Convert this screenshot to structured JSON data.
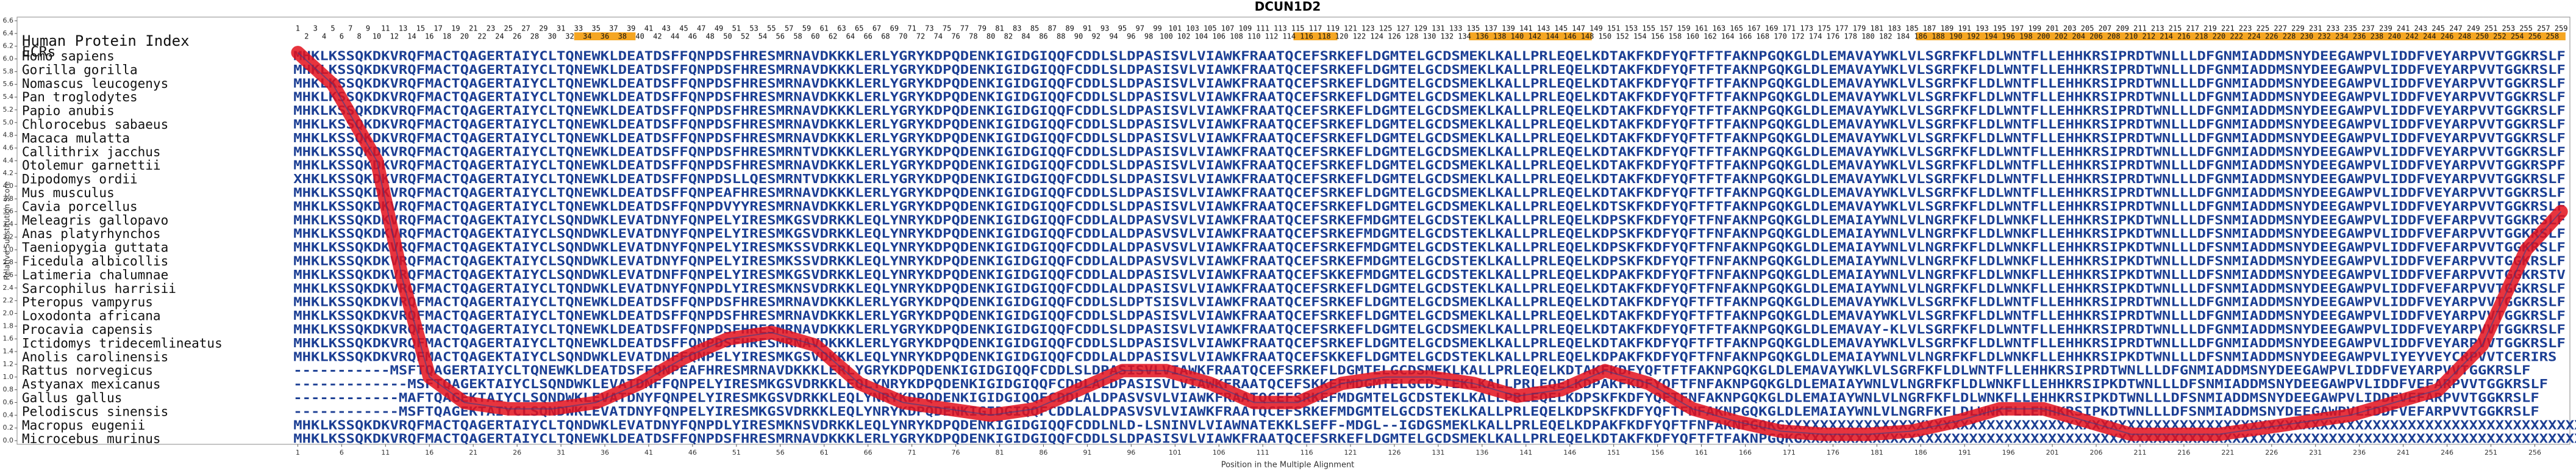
{
  "chart_data": {
    "type": "line",
    "title": "DCUN1D2",
    "xlabel": "Position in the Multiple Alignment",
    "ylabel": "Relative Substitution Score",
    "row_header": "Human Protein Index",
    "ecr_label": "ECRs",
    "xlim": [
      -31,
      260
    ],
    "ylim": [
      0,
      6.6
    ],
    "xticks": [
      1,
      6,
      11,
      16,
      21,
      26,
      31,
      36,
      41,
      46,
      51,
      56,
      61,
      66,
      71,
      76,
      81,
      86,
      91,
      96,
      101,
      106,
      111,
      116,
      121,
      126,
      131,
      136,
      141,
      146,
      151,
      156,
      161,
      166,
      171,
      176,
      181,
      186,
      191,
      196,
      201,
      206,
      211,
      216,
      221,
      226,
      231,
      236,
      241,
      246,
      251,
      256
    ],
    "yticks": [
      {
        "value": 0,
        "label": "0.0"
      },
      0.2,
      0.4,
      0.6,
      0.8,
      {
        "value": 1,
        "label": "1.0"
      },
      1.2,
      1.4,
      1.6,
      1.8,
      {
        "value": 2,
        "label": "2.0"
      },
      2.2,
      2.4,
      2.6,
      2.8,
      {
        "value": 3,
        "label": "3.0"
      },
      3.2,
      3.4,
      3.6,
      3.8,
      {
        "value": 4,
        "label": "4.0"
      },
      4.2,
      4.4,
      4.6,
      4.8,
      {
        "value": 5,
        "label": "5.0"
      },
      5.2,
      5.4,
      5.6,
      5.8,
      {
        "value": 6,
        "label": "6.0"
      },
      6.2,
      6.4,
      6.6
    ],
    "color": "#e3101c",
    "x": [
      1,
      5,
      10,
      13,
      16,
      20,
      25,
      30,
      35,
      40,
      45,
      50,
      55,
      60,
      65,
      70,
      75,
      80,
      85,
      90,
      95,
      100,
      105,
      110,
      115,
      120,
      125,
      130,
      135,
      140,
      145,
      150,
      155,
      160,
      165,
      170,
      175,
      180,
      185,
      190,
      195,
      200,
      205,
      210,
      215,
      220,
      225,
      230,
      235,
      240,
      245,
      250,
      255,
      259
    ],
    "values": [
      6.1,
      5.6,
      4.4,
      2.5,
      1.0,
      0.6,
      0.5,
      0.5,
      0.6,
      0.9,
      1.3,
      1.6,
      1.7,
      1.5,
      0.9,
      0.6,
      0.5,
      0.4,
      0.5,
      0.8,
      1.1,
      1.1,
      0.9,
      0.6,
      0.6,
      0.9,
      1.0,
      1.0,
      0.9,
      0.7,
      0.8,
      1.1,
      0.9,
      0.5,
      0.3,
      0.15,
      0.1,
      0.1,
      0.15,
      0.3,
      0.5,
      0.5,
      0.3,
      0.1,
      0.1,
      0.1,
      0.2,
      0.3,
      0.4,
      0.6,
      0.8,
      1.5,
      3.0,
      3.6
    ],
    "ecr_color": "#f5a623",
    "ecrs": [
      [
        33,
        39
      ],
      [
        115,
        119
      ],
      [
        135,
        148
      ],
      [
        186,
        259
      ]
    ],
    "human_index": [
      1,
      2,
      3,
      4,
      5,
      6,
      7,
      8,
      9,
      10,
      11,
      12,
      13,
      14,
      15,
      16,
      17,
      18,
      19,
      20,
      21,
      22,
      23,
      24,
      25,
      26,
      27,
      28,
      29,
      30,
      31,
      32,
      33,
      34,
      35,
      36,
      37,
      38,
      39,
      40,
      41,
      42,
      43,
      44,
      45,
      46,
      47,
      48,
      49,
      50,
      51,
      52,
      53,
      54,
      55,
      56,
      57,
      58,
      59,
      60,
      61,
      62,
      63,
      64,
      65,
      66,
      67,
      68,
      69,
      70,
      71,
      72,
      73,
      74,
      75,
      76,
      77,
      78,
      79,
      80,
      81,
      82,
      83,
      84,
      85,
      86,
      87,
      88,
      89,
      90,
      91,
      92,
      93,
      94,
      95,
      96,
      97,
      98,
      99,
      100,
      101,
      102,
      103,
      104,
      105,
      106,
      107,
      108,
      109,
      110,
      111,
      112,
      113,
      114,
      115,
      116,
      117,
      118,
      119,
      120,
      121,
      122,
      123,
      124,
      125,
      126,
      127,
      128,
      129,
      130,
      131,
      132,
      133,
      134,
      135,
      136,
      137,
      138,
      139,
      140,
      141,
      142,
      143,
      144,
      145,
      146,
      147,
      148,
      149,
      150,
      151,
      152,
      153,
      154,
      155,
      156,
      157,
      158,
      159,
      160,
      161,
      162,
      163,
      164,
      165,
      166,
      167,
      168,
      169,
      170,
      171,
      172,
      173,
      174,
      175,
      176,
      177,
      178,
      179,
      180,
      181,
      182,
      183,
      184,
      185,
      186,
      187,
      188,
      189,
      190,
      191,
      192,
      193,
      194,
      195,
      196,
      197,
      198,
      199,
      200,
      201,
      202,
      203,
      204,
      205,
      206,
      207,
      208,
      209,
      210,
      211,
      212,
      213,
      214,
      215,
      216,
      217,
      218,
      219,
      220,
      221,
      222,
      223,
      224,
      225,
      226,
      227,
      228,
      229,
      230,
      231,
      232,
      233,
      234,
      235,
      236,
      237,
      238,
      239,
      240,
      241,
      242,
      243,
      244,
      245,
      246,
      247,
      248,
      249,
      250,
      251,
      252,
      253,
      254,
      255,
      256,
      257,
      258,
      259
    ],
    "alignment": [
      {
        "species": "Homo sapiens",
        "sequence": "MHKLKSSQKDKVRQFMACTQAGERTAIYCLTQNEWKLDEATDSFFQNPDSFHRESMRNAVDKKKLERLYGRYKDPQDENKIGIDGIQQFCDDLSLDPASISVLVIAWKFRAATQCEFSRKEFLDGMTELGCDSMEKLKALLPRLEQELKDTAKFKDFYQFTFTFAKNPGQKGLDLEMAVAYWKLVLSGRFKFLDLWNTFLLEHHKRSIPRDTWNLLLDFGNMIADDMSNYDEEGAWPVLIDDFVEYARPVVTGGKRSLF"
      },
      {
        "species": "Gorilla gorilla",
        "sequence": "MHKLKSSQKDKVRQFMACTQAGERTAIYCLTQNEWKLDEATDSFFQNPDSFHRESMRNAVDKKKLERLYGRYKDPQDENKIGIDGIQQFCDDLSLDPASISVLVIAWKFRAATQCEFSRKEFLDGMTELGCDSMEKLKALLPRLEQELKDTAKFKDFYQFTFTFAKNPGQKGLDLEMAVAYWKLVLSGRFKFLDLWNTFLLEHHKRSIPRDTWNLLLDFGNMIADDMSNYDEEGAWPVLIDDFVEYARPVVTGGKRSLF"
      },
      {
        "species": "Nomascus leucogenys",
        "sequence": "MHKLKSSQKDKVRQFMACTQAGERTAIYCLTQNEWKLDEATDSFFQNPDSFHRESMRNAVDKKKLERLYGRYKDPQDENKIGIDGIQQFCDDLSLDPASISVLVIAWKFRAATQCEFSRKEFLDGMTELGCDSMEKLKALLPRLEQELKDTAKFKDFYQFTFTFAKNPGQKGLDLEMAVAYWKLVLSGRFKFLDLWNTFLLEHHKRSIPRDTWNLLLDFGNMIADDMSNYDEEGAWPVLIDDFVEYARPVVTGGKRSLF"
      },
      {
        "species": "Pan troglodytes",
        "sequence": "MHKLKSSQKDKVRQFMACTQAGERTAIYCLTQNEWKLDEATDSFFQNPDSFHRESMRNAVDKKKLERLYGRYKDPQDENKIGIDGIQQFCDDLSLDPASISVLVIAWKFRAATQCEFSRKEFLDGMTELGCDSMEKLKALLPRLEQELKDTAKFKDFYQFTFTFAKNPGQKGLDLEMAVAYWKLVLSGRFKFLDLWNTFLLEHHKRSIPRDTWNLLLDFGNMIADDMSNYDEEGAWPVLIDDFVEYARPVVTGGKRSLF"
      },
      {
        "species": "Papio anubis",
        "sequence": "MHKLKSSQKDKVRQFMACTQAGERTAIYCLTQNEWKLDEATDSFFQNPDSFHRESMRNAVDKKKLERLYGRYKDPQDENKIGIDGIQQFCDDLSLDPASISVLVIAWKFRAATQCEFSRKEFLDGMTELGCDSMEKLKALLPRLEQELKDTAKFKDFYQFTFTFAKNPGQKGLDLEMAVAYWKLVLSGRFKFLDLWNTFLLEHHKRSIPRDTWNLLLDFGNMIADDMSNYDEEGAWPVLIDDFVEYARPVVTGGKRSLF"
      },
      {
        "species": "Chlorocebus sabaeus",
        "sequence": "MHKLKSSQKDKVRQFMACTQAGERTAIYCLTQNEWKLDEATDSFFQNPDSFHRESMRNAVDKKKLERLYGRYKDPQDENKIGIDGIQQFCDDLSLDPASISVLVIAWKFRAATQCEFSRKEFLDGMTELGCDSMEKLKALLPRLEQELKDTAKFKDFYQFTFTFAKNPGQKGLDLEMAVAYWKLVLSGRFKFLDLWNTFLLEHHKRSIPRDTWNLLLDFGNMIADDMSNYDEEGAWPVLIDDFVEYARPVVTGGKRSLF"
      },
      {
        "species": "Macaca mulatta",
        "sequence": "MHKLKSSQKDKVRQFMACTQAGERTAIYCLTQNEWKLDEATDSFFQNPDSFHRESMRNAVDKKKLERLYGRYKDPQDENKIGIDGIQQFCDDLSLDPASISVLVIAWKFRAATQCEFSRKEFLDGMTELGCDSMEKLKALLPRLEQELKDTAKFKDFYQFTFTFAKNPGQKGLDLEMAVAYWKLVLSGRFKFLDLWNTFLLEHHKRSIPRDTWNLLLDFGNMIADDMSNYDEEGAWPVLIDDFVEYARPVVTGGKRSLF"
      },
      {
        "species": "Callithrix jacchus",
        "sequence": "MHKLKSSQKDKVRQFMACTQAGERTAIYCLTQNEWKLDEATDSFFQNPDSFHRESMRNTVDKKKLERLYGRYKDPQDENKIGIDGIQQFCDDLSLDPASISVLVIAWKFRAATQCEFSRKEFLDGMTELGCDSMEKLKALLPRLEQELKDTAKFKDFYQFTFTFAKNPGQKGLDLEMAVAYWKLVLSGRFKFLDLWNTFLLEHHKRSIPRDTWNLLLDFGNMIADDMSNYDEEGAWPVLIDDFVEYARPVVTGGKRSLF"
      },
      {
        "species": "Otolemur garnettii",
        "sequence": "MHKLKSSQKDKVRQFMACTQAGERTAIYCLTQNEWKLDEATDSFFQNPDSFHRESMRNAVDKKKLERLYGRYKDPQDENKIGIDGIQQFCDDLSLDPASISVLVIAWKFRAATQCEFSRKEFLDGMTELGCDSMEKLKALLPRLEQELKDTAKFKDFYQFTFTFAKNPGQKGLDLEMAVAYWKLVLSGRFKFLDLWNTFLLEHHKRSIPRDTWNLLLDFGNMIADDMSNYDEEGAWPVLIDDFVEYARPVVTGGKRSPF"
      },
      {
        "species": "Dipodomys ordii",
        "sequence": "XHKLKSSQKDKVRQFMACTQAGERTAIYCLTQNEWKLDEATDSFFQNPDSLLQESMRNTVDKKKLERLYGRYKDPQDENKIGIDGIQQFCDDLSLDPASISVLVIAWKFRAATQCEFSRKEFLDGMTELGCDSMEKLKALLPRLEQELKDTAKFKDFYQFTFTFAKNPGQKGLDLEMAVAYWKLVLSGRFKFLDLWNTFLLEHHKRSIPRDTWNLLLDFGNMIADDMSNYDEEGAWPVLIDDFVEYARPVVTGGKRSLF"
      },
      {
        "species": "Mus musculus",
        "sequence": "MHKLKSSQKDKVRQFMACTQAGERTAIYCLTQNEWKLDEATDSFFQNPEAFHRESMRNAVDKKKLERLYGRYKDPQDENKIGIDGIQQFCDDLSLDPASISVLVIAWKFRAATQCEFSRKEFLDGMTELGCDSMEKLKALLPRLEQELKDTAKFKDFYQFTFTFAKNPGQKGLDLEMAVAYWKLVLSGRFKFLDLWNTFLLEHHKRSIPRDTWNLLLDFGNMIADDMSNYDEEGAWPVLIDDFVEYARPVVTGGKRSLF"
      },
      {
        "species": "Cavia porcellus",
        "sequence": "MHKLKSSQKDKVRQFMACTQAGERTAIYCLTQNEWKLDEATDSFFQNPDVYYRESMRNAVDKKKLERLYGRYKDPQDENKIGIDGIQQFCDDLSLDPASISVLVIAWKFRAATQCEFSRKEFLDGMTELGCDSMEKLKALLPRLEQELKDTSKFKDFYQFTFTFAKNPGQKGLDLEMAVAYWKLVLSGRFKFLDLWNTFLLEHHKRSIPRDTWNLLLDFGNMIADDMSNYDEEGAWPVLIDDFVEYARPVVTGGKRSLF"
      },
      {
        "species": "Meleagris gallopavo",
        "sequence": "MHKLKSSQKDKVRQFMACTQAGEKTAIYCLSQNDWKLEVATDNYFQNPELYIRESMKGSVDRKKLEQLYNRYKDPQDENKIGIDGIQQFCDDLALDPASVSVLVIAWKFRAATQCEFSRKEFMDGMTELGCDSTEKLKALLPRLEQELKDPSKFKDFYQFTFNFAKNPGQKGLDLEMAIAYWNLVLNGRFKFLDLWNKFLLEHHKRSIPKDTWNLLLDFSNMIADDMSNYDEEGAWPVLIDDFVEFARPVVTGGKRSLF"
      },
      {
        "species": "Anas platyrhynchos",
        "sequence": "MHKLKSSQKDKVRQFMACTQAGEKTAIYCLSQNDWKLEVATDNYFQNPELYIRESMKGSVDRKKLEQLYNRYKDPQDENKIGIDGIQQFCDDLALDPASVSVLVIAWKFRAATQCEFSRKEFMDGMTELGCDSTEKLKALLPRLEQELKDPSKFKDFYQFTFNFAKNPGQKGLDLEMAIAYWNLVLNGRFKFLDLWNKFLLEHHKRSIPKDTWNLLLDFSNMIADDMSNYDEEGAWPVLIDDFVEFARPVVTGGKRSLF"
      },
      {
        "species": "Taeniopygia guttata",
        "sequence": "MHKLKSSQKDKVRQFMACTQAGEKTAIYCLSQNDWKLEVATDNYFQNPELYIRESMKSSVDRKKLEQLYNRYKDPQDENKIGIDGIQQFCDDLALDPASVSVLVIAWKFRAATQCEFSRKEFMDGMTELGCDSTEKLKALLPRLEQELKDPSKFKDFYQFTFNFAKNPGQKGLDLEMAIAYWNLVLNGRFKFLDLWNKFLLEHHKRSIPKDTWNLLLDFSNMIADDMSNYDEEGAWPVLIDDFVEFARPVVTGGKRSLF"
      },
      {
        "species": "Ficedula albicollis",
        "sequence": "MHKLKSSQKDKVRQFMACTQAGEKTAIYCLSQNDWKLEVATDNYFQNPELYIRESMKSSVDRKKLEQLYNRYKDPQDENKIGIDGIQQFCDDLALDPASVSVLVIAWKFRAATQCEFSRKEFMDGMTELGCDSTEKLKALLPRLEQELKDPSKFKDFYQFTFNFAKNPGQKGLDLEMAIAYWNLVLNGRFKFLDLWNKFLLEHHKRSIPKDTWNLLLDFSNMIADDMSNYDEEGAWPVLIDDFVEFARPVVTGGKRSLF"
      },
      {
        "species": "Latimeria chalumnae",
        "sequence": "MHKLKSSQKDKVRQFMACTQAGEKTAIYCLSQNDWKLEVATDNFFQNPELYIRESMKGSVDRKKLEQLYNRYKDPQDENKIGIDGIQQFCDDLALDPASISVLVIAWKFRAATQCEFSKKEFMDGMTELGCDSTEKLKALLPRLEQELKDPAKFKDFYQFTFNFAKNPGQKGLDLEMAIAYWNLVLNGRFKFLDLWNKFLLEHHKRSIPKDTWNLLLDFSNMIADDMSNYDEEGAWPVLIDDFVEFARPVVTGGKRSTV"
      },
      {
        "species": "Sarcophilus harrisii",
        "sequence": "MHKLKSSQKDKVRQFMACTQAGERTAIYCLTQNDWKLEVATDNYFQNPDLYIRESMKNSVDRKKLEQLYNRYKDPQDENKIGIDGIQQFCDDLALDPASISVLVIAWKFRAATQCEFSRKEFLDGMTELGCDSTEKLKALLPRLEQELKDTAKFKDFYQFTFNFAKNPGQKGLDLEMAIAYWNLVLNGRFKFLDLWNKFLLEHHKRSIPKDTWNLLLDFSNMIADDMSNYDEEGAWPVLIDDFVEFARPVVTGGKRSLF"
      },
      {
        "species": "Pteropus vampyrus",
        "sequence": "MHKLKSSQKDKVRQFMACTQAGERTAIYCLTQNEWKLDEATDSFFQNPDSFHRESMRNAVDKKKLERLYGRYKDPQDENKIGIDGIQQFCDDLSLDPTSISVLVIAWKFRAATQCEFSRKEFLDGMTELGCDSMEKLKALLPRLEQELKDTAKFKDFYQFTFTFAKNPGQKGLDLEMAVAYWKLVLSGRFKFLDLWNTFLLEHHKRSIPRDTWNLLLDFGNMIADDMSNYDEEGAWPVLIDDFVEYARPVVTGGKRSLF"
      },
      {
        "species": "Loxodonta africana",
        "sequence": "MHKLKSSQKDKVRQFMACTQAGERTAIYCLTQNEWKLDEATDSFFQNPDSFHRESMRNAVDKKKLERLYGRYKDPQDENKIGIDGIQQFCDDLSLDPASISVLVIAWKFRAATQCEFSRKEFLDGMTELGCDSMEKLKALLPRLEQELKDTAKFKDFYQFTFTFAKNPGQKGLDLEMAVAYWKLVLSGRFKFLDLWNTFLLEHHKRSIPRDTWNLLLDFGNMIADDMSNYDEEGAWPVLIDDFVEYARPVVTGGKRSLF"
      },
      {
        "species": "Procavia capensis",
        "sequence": "MHKLKSSQKDKVRQFMACTQAGERTAIYCLTQNEWKLDEATDSFFQNPDSFHRESMRNAVDKKKLERLYGRYKDPQDENKIGIDGIQQFCDDLSLDPASISVLVIAWKFRAATQCEFSRKEFLDGMTELGCDSMEKLKALLPRLEQELKDTAKFKDFYQFTFTFAKNPGQKGLDLEMAVAY-KLVLSGRFKFLDLWNTFLLEHHKRSIPRDTWNLLLDFGNMIADDMSNYDEEGAWPVLIDDFVEYARPVVTGGKRSLF"
      },
      {
        "species": "Ictidomys tridecemlineatus",
        "sequence": "MHKLKSSQKDKVRQFMACTQAGERTAIYCLTQNEWKLDEATDSFFQNPDSFHRESMRNAVDKKKLERLYGRYKDPQDENKIGIDGIQQFCDDLSLDPASISVLVIAWKFRAATQCEFSRKEFLDGMTELGCDSMEKLKALLPRLEQELKDTAKFKDFYQFTFTFAKNPGQKGLDLEMAVAYWKLVLSGRFKFLDLWNTFLLEHHKRSIPRDTWNLLLDFGNMIADDMSNYDEEGAWPVLIDDFVEYARPVVTGGKRSLF"
      },
      {
        "species": "Anolis carolinensis",
        "sequence": "MHKLKSSQKDKVRQFMACTQAGEKTAIYCLSQNDWKLEVATDNFFQNPELYIRESMKGSVDKKKLEQLYNRYKDPQDENKIGIDGIQQFCDDLALDPASISVLVIAWKFRAATQCEFSKKEFLDGMTELGCDSTEKLKALLPRLEQELKDPAKFKDFYQFTFNFAKNPGQKGLDLEMAIAYWNLVLNGRFKFLDLWNKFLLEHHKRSIPKDTWNLLLDFSNMIADDMSNYDEEGAWPVLIYEYVEYCRPVVTCERIRS"
      },
      {
        "species": "Rattus norvegicus",
        "sequence": "-----------MSFTQAGERTAIYCLTQNEWKLDEATDSFFQNPEAFHRESMRNAVDKKKLERLYGRYKDPQDENKIGIDGIQQFCDDLSLDPASISVLVIAWKFRAATQCEFSRKEFLDGMTELGCDSMEKLKALLPRLEQELKDTAKFKDFYQFTFTFAKNPGQKGLDLEMAVAYWKLVLSGRFKFLDLWNTFLLEHHKRSIPRDTWNLLLDFGNMIADDMSNYDEEGAWPVLIDDFVEYARPVVTGGKRSLF"
      },
      {
        "species": "Astyanax mexicanus",
        "sequence": "-------------MSFTQAGEKTAIYCLSQNDWKLEVATDNFFQNPELYIRESMKGSVDRKKLEQLYNRYKDPQDENKIGIDGIQQFCDDLALDPASISVLVIAWKFRAATQCEFSKKEFMDGMTELGCDSTEKLKALLPRLEQELKDPAKFKDFYQFTFNFAKNPGQKGLDLEMAIAYWNLVLNGRFKFLDLWNKFLLEHHKRSIPKDTWNLLLDFSNMIADDMSNYDEEGAWPVLIDDFVEFARPVVTGGKRSLF"
      },
      {
        "species": "Gallus gallus",
        "sequence": "------------MAFTQAGEKTAIYCLSQNDWKLEVATDNYFQNPELYIRESMKGSVDRKKLEQLYNRYKDPQDENKIGIDGIQQFCDDLALDPASVSVLVIAWKFRAATQCEFSRKEFMDGMTELGCDSTEKLKALLPRLEQELKDPSKFKDFYQFTFNFAKNPGQKGLDLEMAIAYWNLVLNGRFKFLDLWNKFLLEHHKRSIPKDTWNLLLDFSNMIADDMSNYDEEGAWPVLIDDFVEFARPVVTGGKRSLF"
      },
      {
        "species": "Pelodiscus sinensis",
        "sequence": "------------MSFTQAGEKTAIYCLSQNDWKLEVATDNYFQNPELYIRESMKGSVDRKKLEQLYNRYKDPQDENKIGIDGIQQFCDDLALDPASVSVLVIAWKFRAATQCEFSRKEFMDGMTELGCDSTEKLKALLPRLEQELKDPSKFKDFYQFTFNFAKNPGQKGLDLEMAIAYWNLVLNGRFKFLDLWNKFLLEHHKRSIPKDTWNLLLDFSNMIADDMSNYDEEGAWPVLIDDFVEFARPVVTGGKRSLF"
      },
      {
        "species": "Macropus eugenii",
        "sequence": "MHKLKSSQKDKVRQFMACTQAGERTAIYCLTQNDWKLEVATDNYFQNPDLYIRESMKNSVDRKKLEQLYNRYKDPQDENKIGIDGIQQFCDDLNLD-LSNINVLVIAWNATEKKLSEFF-MDGL--IGDGSMEKLKALLPRLEQELKDPAKFKDFYQFTFNFAKNPGQKGXXXXXXXXXXXXXXXXXXXXXXXXXXXXXXXXXXXXXXXXXXXXXXXXXXXXXXXXXXXXXXXXXXXXXXXXXXXXXXXXXXXXXXXXXXXXXXXX"
      },
      {
        "species": "Microcebus murinus",
        "sequence": "MHKLKSSQKDKVRQFMACTQAGERTAIYCLTQNEWKLDEATDSFFQNPDSFHRESMRNAVDKKKLERLYGRYKDPQDENKIGIDGIQQFCDDLSLDPASISVLVIAWKFRAATQCEFSRKEFLDGMTELGCDSMEKLKALLPRLEQELKDTAKFKDFYQFTFTFAKNPGQKGXXXXXXXXXXXXXXXXXXXXXXXXXXXXXXXXXXXXXXXXXXXXXXXXXXXXXXXXXXXXXXXXXXXXXXXXXXXXXXXXXXXXXXXXXXXXXXX"
      }
    ]
  }
}
